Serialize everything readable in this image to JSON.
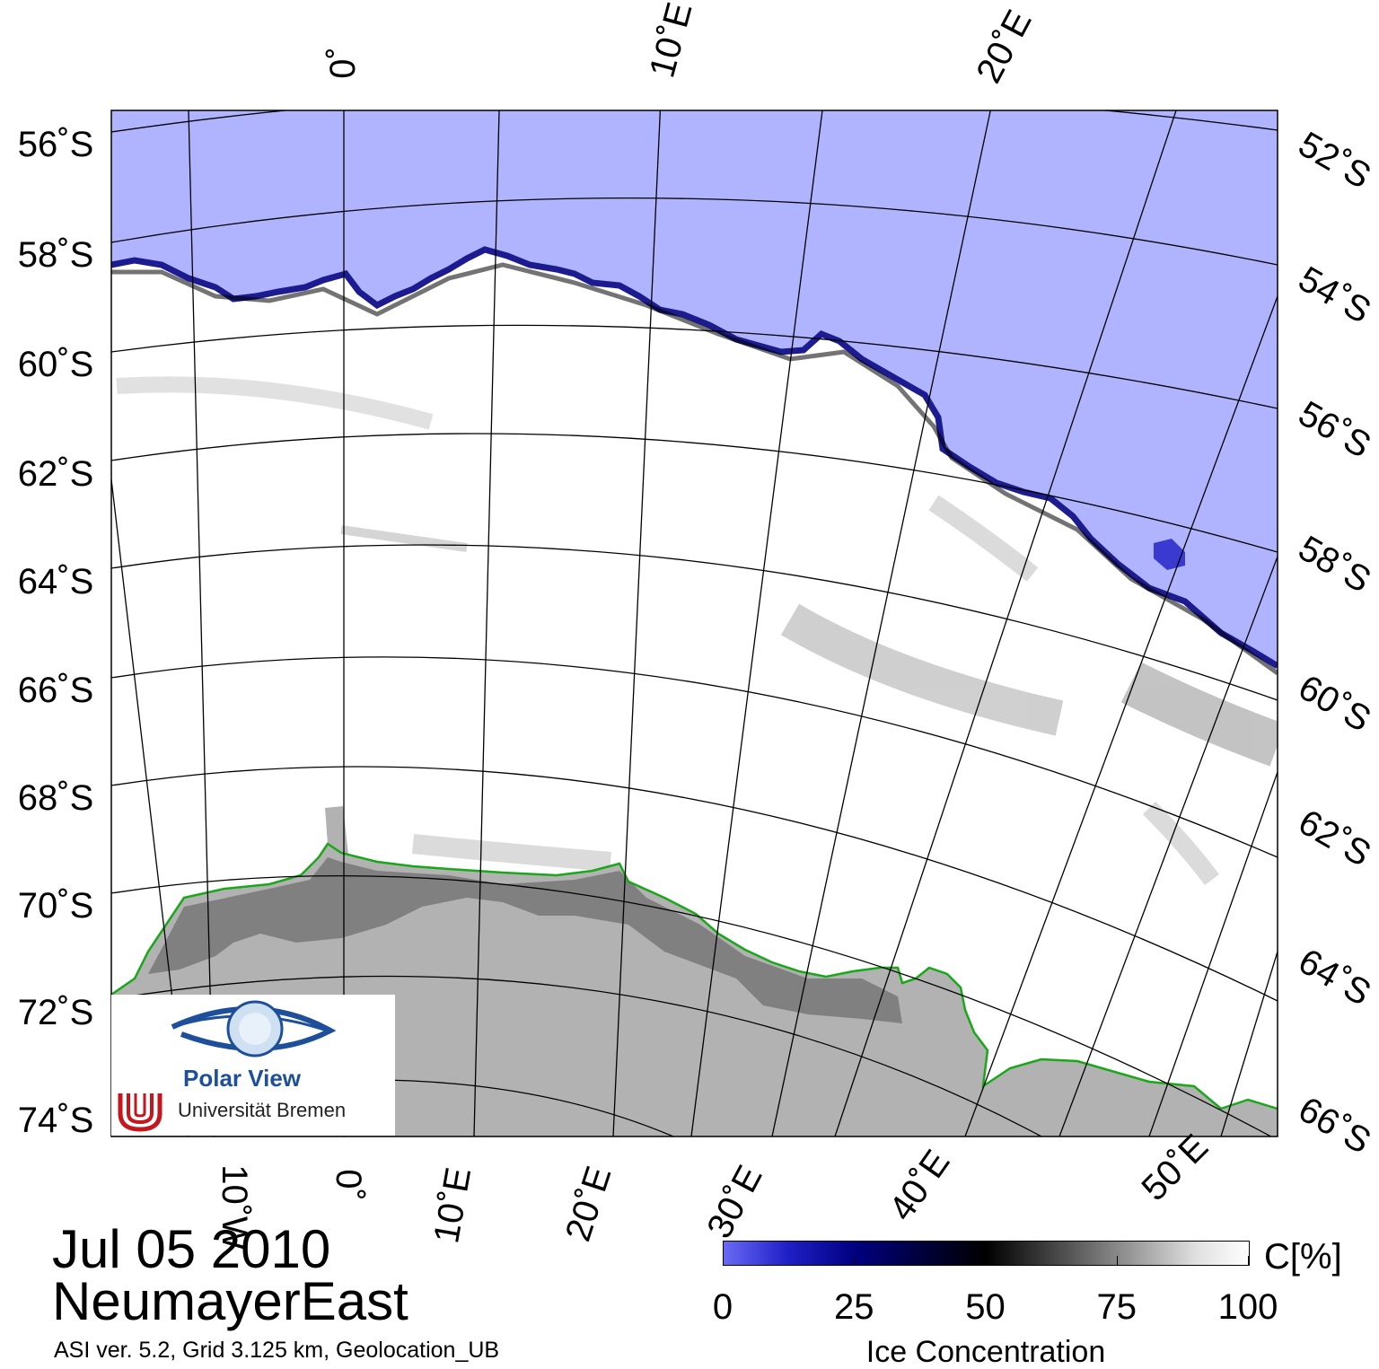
{
  "map": {
    "colors": {
      "open_water": "#b0b4ff",
      "ice_edge": "#3a3ad0",
      "pack_ice": "#ffffff",
      "land": "#b2b2b2",
      "ice_shelf": "#808080",
      "coastline": "#18a818",
      "graticule": "#000000"
    },
    "lat_labels_left": [
      "56˚S",
      "58˚S",
      "60˚S",
      "62˚S",
      "64˚S",
      "66˚S",
      "68˚S",
      "70˚S",
      "72˚S",
      "74˚S"
    ],
    "lat_labels_right": [
      "52˚S",
      "54˚S",
      "56˚S",
      "58˚S",
      "60˚S",
      "62˚S",
      "64˚S",
      "66˚S"
    ],
    "lon_labels_top": [
      "0˚",
      "10˚E",
      "20˚E"
    ],
    "lon_labels_bottom": [
      "10˚W",
      "0˚",
      "10˚E",
      "20˚E",
      "30˚E",
      "40˚E",
      "50˚E"
    ]
  },
  "logo": {
    "line1": "Polar View",
    "line2": "Universität Bremen",
    "icon": "eye-globe-icon",
    "seal": "bremen-u-seal-icon"
  },
  "info": {
    "date": "Jul 05 2010",
    "region": "NeumayerEast",
    "credit": "ASI ver. 5.2,  Grid 3.125 km, Geolocation_UB"
  },
  "colorbar": {
    "unit": "C[%]",
    "title": "Ice Concentration",
    "ticks": [
      "0",
      "25",
      "50",
      "75",
      "100"
    ],
    "range": [
      0,
      100
    ]
  }
}
